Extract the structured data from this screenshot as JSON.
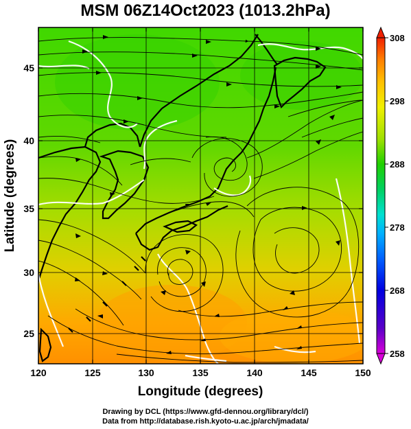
{
  "title": "MSM 06Z14Oct2023 (1013.2hPa)",
  "axes": {
    "xlabel": "Longitude (degrees)",
    "ylabel": "Latitude  (degrees)",
    "x_ticks": [
      "120",
      "125",
      "130",
      "135",
      "140",
      "145",
      "150"
    ],
    "y_ticks": [
      "25",
      "30",
      "35",
      "40",
      "45"
    ],
    "x_range": [
      120,
      150
    ],
    "y_range": [
      22.4,
      47.6
    ]
  },
  "colorbar": {
    "ticks": [
      "308",
      "298",
      "288",
      "278",
      "268",
      "258"
    ],
    "range": [
      258,
      308
    ],
    "colors": [
      "#d800d8",
      "#5a00c8",
      "#0000e0",
      "#0060ff",
      "#00b0ff",
      "#00e0d0",
      "#00d060",
      "#20d000",
      "#a0e000",
      "#f0f000",
      "#ffc000",
      "#ff8000",
      "#f02000"
    ]
  },
  "credits": {
    "line1": "Drawing by DCL (https://www.gfd-dennou.org/library/dcl/)",
    "line2": "Data from http://database.rish.kyoto-u.ac.jp/arch/jmadata/"
  }
}
